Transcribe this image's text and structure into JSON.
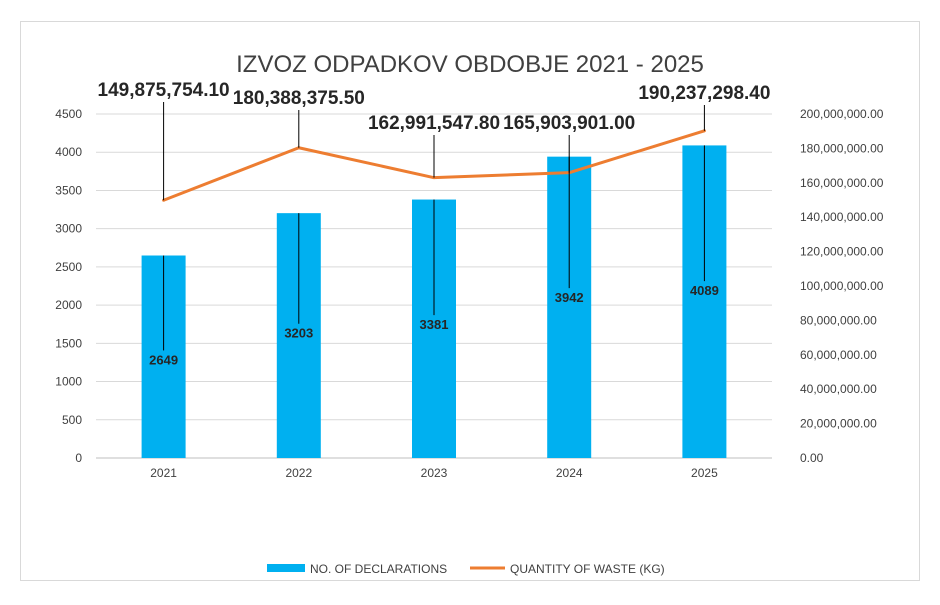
{
  "chart_data": {
    "type": "bar",
    "title": "IZVOZ ODPADKOV OBDOBJE 2021 - 2025",
    "categories": [
      "2021",
      "2022",
      "2023",
      "2024",
      "2025"
    ],
    "series": [
      {
        "name": "NO. OF DECLARATIONS",
        "type": "bar",
        "axis": "left",
        "color": "#00b0f0",
        "values": [
          2649,
          3203,
          3381,
          3942,
          4089
        ],
        "labels": [
          "2649",
          "3203",
          "3381",
          "3942",
          "4089"
        ]
      },
      {
        "name": "QUANTITY OF WASTE (KG)",
        "type": "line",
        "axis": "right",
        "color": "#ed7d31",
        "values": [
          149875754.1,
          180388375.5,
          162991547.8,
          165903901.0,
          190237298.4
        ],
        "labels": [
          "149,875,754.10",
          "180,388,375.50",
          "162,991,547.80",
          "165,903,901.00",
          "190,237,298.40"
        ]
      }
    ],
    "y_left": {
      "min": 0,
      "max": 4500,
      "ticks": [
        "0",
        "500",
        "1000",
        "1500",
        "2000",
        "2500",
        "3000",
        "3500",
        "4000",
        "4500"
      ]
    },
    "y_right": {
      "min": 0,
      "max": 200000000,
      "ticks": [
        "0.00",
        "20,000,000.00",
        "40,000,000.00",
        "60,000,000.00",
        "80,000,000.00",
        "100,000,000.00",
        "120,000,000.00",
        "140,000,000.00",
        "160,000,000.00",
        "180,000,000.00",
        "200,000,000.00"
      ]
    },
    "grid": true,
    "legend": "bottom"
  }
}
